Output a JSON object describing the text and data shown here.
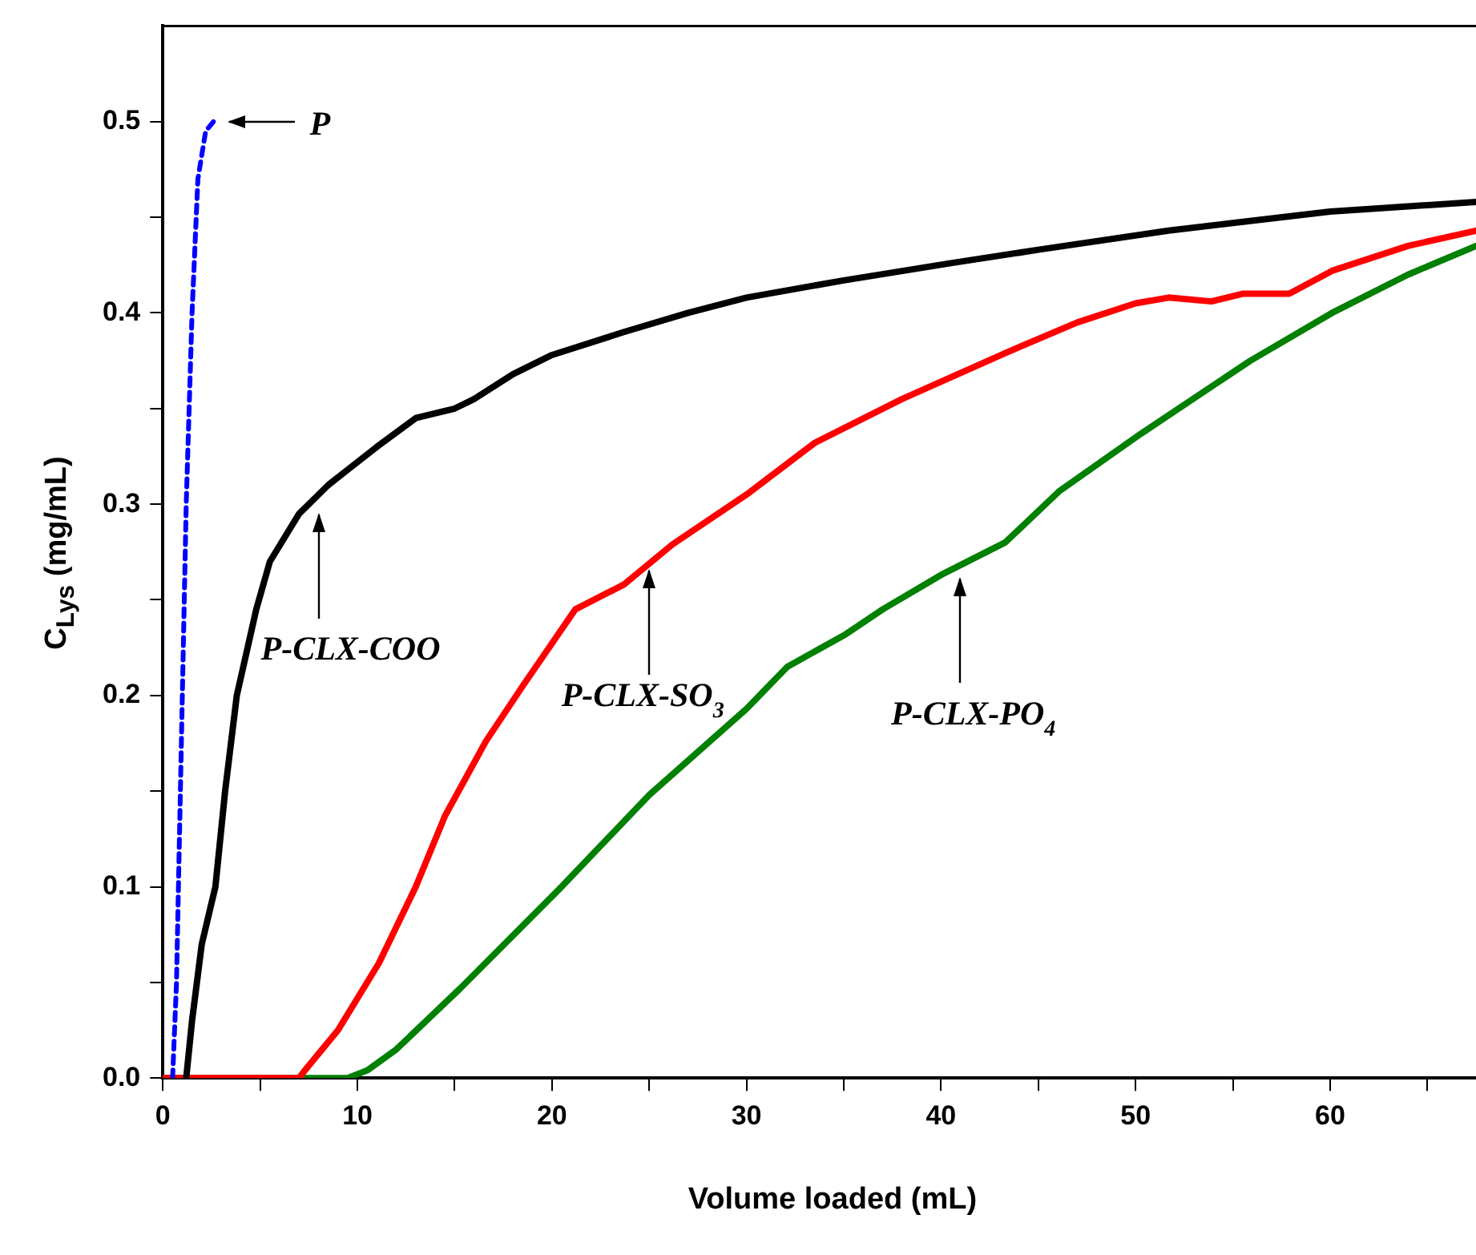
{
  "chart_data": {
    "type": "line",
    "xlabel": "Volume loaded (mL)",
    "ylabel": "C$_{Lys}$ (mg/mL)",
    "xlim": [
      0,
      67.5
    ],
    "ylim": [
      0,
      0.55
    ],
    "xticks": [
      0,
      {
        "value": 5,
        "label": null
      },
      10,
      {
        "value": 15,
        "label": null
      },
      20,
      {
        "value": 25,
        "label": null
      },
      30,
      {
        "value": 35,
        "label": null
      },
      40,
      {
        "value": 45,
        "label": null
      },
      50,
      {
        "value": 55,
        "label": null
      },
      60,
      {
        "value": 65,
        "label": null
      }
    ],
    "yticks": [
      {
        "value": 0,
        "label": "0.0"
      },
      {
        "value": 0.05,
        "label": null
      },
      {
        "value": 0.1,
        "label": "0.1"
      },
      {
        "value": 0.15,
        "label": null
      },
      {
        "value": 0.2,
        "label": "0.2"
      },
      {
        "value": 0.25,
        "label": null
      },
      {
        "value": 0.3,
        "label": "0.3"
      },
      {
        "value": 0.35,
        "label": null
      },
      {
        "value": 0.4,
        "label": "0.4"
      },
      {
        "value": 0.45,
        "label": null
      },
      {
        "value": 0.5,
        "label": "0.5"
      }
    ],
    "grid": false,
    "legend": false,
    "marker": "none",
    "series": [
      {
        "color": "#0000ff",
        "line_style": "dashed",
        "x": [
          0.5,
          0.7,
          0.8,
          1.0,
          1.2,
          1.5,
          1.8,
          2.2,
          2.6
        ],
        "values": [
          0,
          0.05,
          0.1,
          0.2,
          0.3,
          0.4,
          0.47,
          0.495,
          0.5
        ]
      },
      {
        "color": "#000000",
        "x": [
          1.2,
          1.5,
          2,
          2.7,
          3.2,
          3.8,
          4.8,
          5.5,
          7,
          8.5,
          9.5,
          11,
          13,
          15,
          16,
          18,
          20,
          23.7,
          27,
          30,
          35,
          40.5,
          45,
          51.7,
          55,
          60,
          67.5
        ],
        "values": [
          0,
          0.03,
          0.07,
          0.1,
          0.15,
          0.2,
          0.245,
          0.27,
          0.295,
          0.31,
          0.318,
          0.33,
          0.345,
          0.35,
          0.355,
          0.368,
          0.378,
          0.39,
          0.4,
          0.408,
          0.417,
          0.426,
          0.433,
          0.443,
          0.447,
          0.453,
          0.458
        ]
      },
      {
        "color": "#ff0000",
        "x": [
          0,
          7,
          7.3,
          9,
          11.1,
          13,
          14.5,
          16.6,
          18.5,
          21.2,
          23.7,
          26.2,
          30,
          33.5,
          38,
          43.3,
          47,
          50,
          51.7,
          53.9,
          55.5,
          57.9,
          60.1,
          64,
          67.5
        ],
        "values": [
          0,
          0,
          0.004,
          0.025,
          0.06,
          0.1,
          0.137,
          0.176,
          0.205,
          0.245,
          0.258,
          0.279,
          0.305,
          0.332,
          0.355,
          0.379,
          0.395,
          0.405,
          0.408,
          0.406,
          0.41,
          0.41,
          0.422,
          0.435,
          0.443
        ]
      },
      {
        "color": "#008000",
        "x": [
          0,
          9.5,
          10.5,
          12,
          15.3,
          20.4,
          25,
          30,
          32.1,
          35.1,
          37,
          40,
          43.3,
          46.1,
          50.3,
          55.9,
          60.1,
          64,
          67.5
        ],
        "values": [
          0,
          0,
          0.004,
          0.015,
          0.047,
          0.099,
          0.148,
          0.193,
          0.215,
          0.232,
          0.245,
          0.263,
          0.28,
          0.307,
          0.337,
          0.375,
          0.4,
          0.42,
          0.435
        ]
      }
    ],
    "annotations": [
      {
        "text": "P",
        "x": 2.6,
        "y": 0.5
      },
      {
        "text": "P-CLX-COO",
        "x": 8,
        "y": 0.3
      },
      {
        "text": "P-CLX-SO$_{3}$",
        "x": 25,
        "y": 0.27
      },
      {
        "text": "P-CLX-PO$_{4}$",
        "x": 41,
        "y": 0.266
      }
    ]
  }
}
